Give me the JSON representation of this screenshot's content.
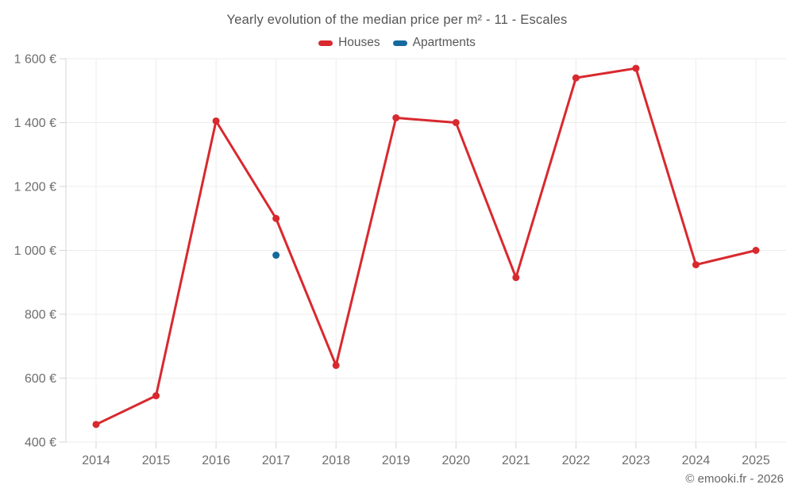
{
  "chart": {
    "title": "Yearly evolution of the median price per m² - 11 - Escales",
    "legend": [
      {
        "label": "Houses"
      },
      {
        "label": "Apartments"
      }
    ]
  },
  "footer": {
    "credits": "© emooki.fr - 2026"
  },
  "colors": {
    "houses": "#d8292f",
    "apartments": "#15699f",
    "grid": "#ececec",
    "axis": "#d6d6d6",
    "text": "#6e6e6e"
  },
  "chart_data": {
    "type": "line",
    "title": "Yearly evolution of the median price per m² - 11 - Escales",
    "xlabel": "",
    "ylabel": "",
    "categories": [
      "2014",
      "2015",
      "2016",
      "2017",
      "2018",
      "2019",
      "2020",
      "2021",
      "2022",
      "2023",
      "2024",
      "2025"
    ],
    "ylim": [
      400,
      1600
    ],
    "yticks": [
      {
        "value": 400,
        "label": "400 €"
      },
      {
        "value": 600,
        "label": "600 €"
      },
      {
        "value": 800,
        "label": "800 €"
      },
      {
        "value": 1000,
        "label": "1 000 €"
      },
      {
        "value": 1200,
        "label": "1 200 €"
      },
      {
        "value": 1400,
        "label": "1 400 €"
      },
      {
        "value": 1600,
        "label": "1 600 €"
      }
    ],
    "grid": true,
    "legend_position": "top",
    "series": [
      {
        "name": "Houses",
        "color": "#d8292f",
        "values": [
          455,
          545,
          1405,
          1100,
          640,
          1415,
          1400,
          915,
          1540,
          1570,
          955,
          1000
        ]
      },
      {
        "name": "Apartments",
        "color": "#15699f",
        "values": [
          null,
          null,
          null,
          985,
          null,
          null,
          null,
          null,
          null,
          null,
          null,
          null
        ]
      }
    ]
  }
}
